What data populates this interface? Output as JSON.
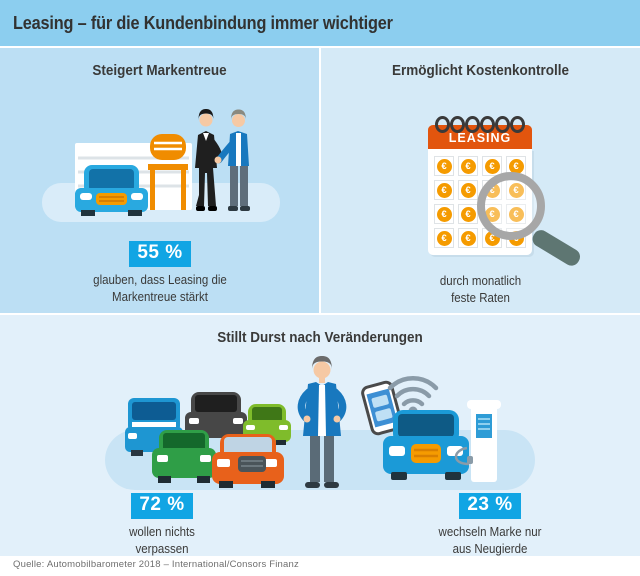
{
  "title": "Leasing – für die Kundenbindung immer wichtiger",
  "panels": {
    "brand_loyalty": {
      "heading": "Steigert Markentreue",
      "stat_value": "55 %",
      "caption_line1": "glauben, dass Leasing die",
      "caption_line2": "Markentreue stärkt"
    },
    "cost_control": {
      "heading": "Ermöglicht Kostenkontrolle",
      "calendar_label": "LEASING",
      "coin_symbol": "€",
      "caption_line1": "durch monatlich",
      "caption_line2": "feste Raten"
    },
    "change_desire": {
      "heading": "Stillt Durst nach Veränderungen",
      "stat_left_value": "72 %",
      "stat_left_caption_line1": "wollen nichts",
      "stat_left_caption_line2": "verpassen",
      "stat_right_value": "23 %",
      "stat_right_caption_line1": "wechseln Marke nur",
      "stat_right_caption_line2": "aus Neugierde"
    }
  },
  "footer": {
    "source": "Quelle: Automobilbarometer 2018 – International/Consors Finanz"
  },
  "colors": {
    "top_bar": "#8CCEEF",
    "panel_left": "#BCDFF4",
    "panel_right": "#D5EAF7",
    "panel_bottom": "#E2F0FA",
    "stat_badge_blue": "#11A5E4",
    "calendar_orange": "#E2550E",
    "coin_orange": "#F59B00",
    "text_dark": "#3A3A39"
  },
  "chart_data": {
    "type": "pictogram-infographic",
    "title": "Leasing – für die Kundenbindung immer wichtiger",
    "source": "Quelle: Automobilbarometer 2018 – International/Consors Finanz",
    "facts": [
      {
        "section": "Steigert Markentreue",
        "value_pct": 55,
        "label": "glauben, dass Leasing die Markentreue stärkt"
      },
      {
        "section": "Ermöglicht Kostenkontrolle",
        "value_pct": null,
        "label": "durch monatlich feste Raten"
      },
      {
        "section": "Stillt Durst nach Veränderungen",
        "value_pct": 72,
        "label": "wollen nichts verpassen"
      },
      {
        "section": "Stillt Durst nach Veränderungen",
        "value_pct": 23,
        "label": "wechseln Marke nur aus Neugierde"
      }
    ]
  }
}
